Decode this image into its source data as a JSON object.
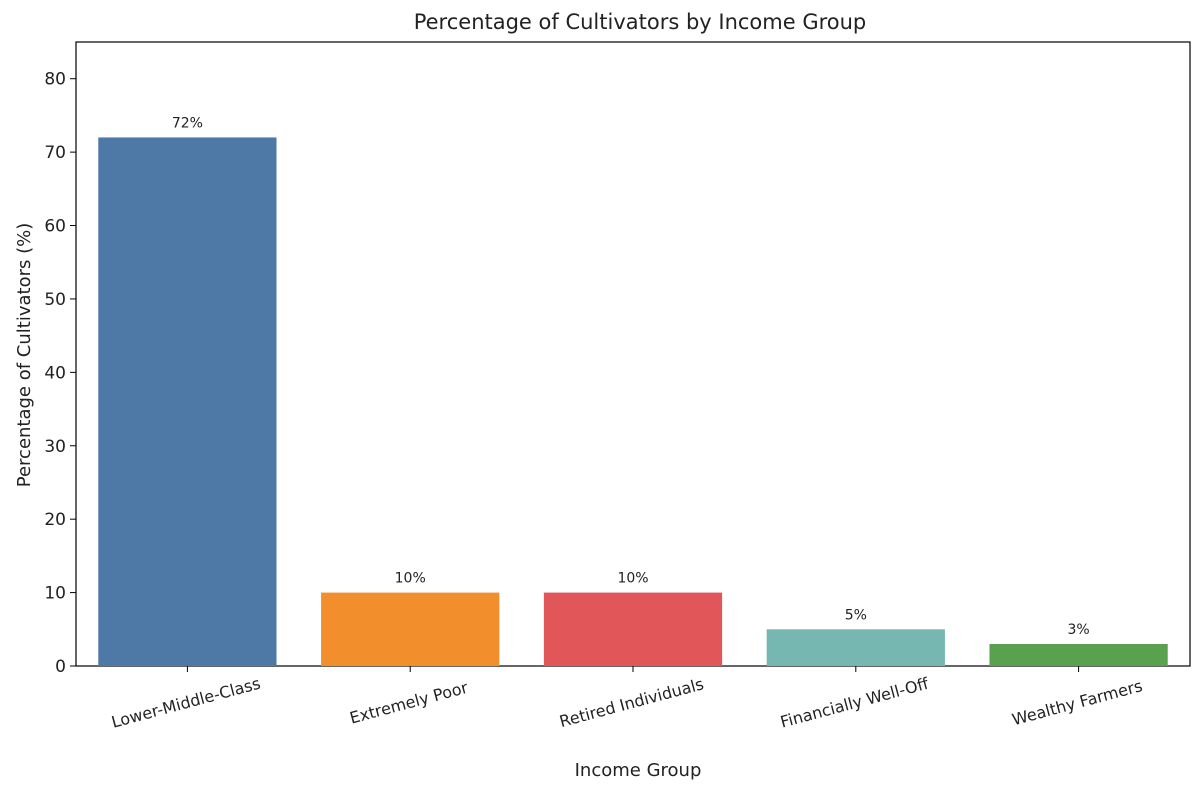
{
  "chart_data": {
    "type": "bar",
    "title": "Percentage of Cultivators by Income Group",
    "xlabel": "Income Group",
    "ylabel": "Percentage of Cultivators (%)",
    "categories": [
      "Lower-Middle-Class",
      "Extremely Poor",
      "Retired Individuals",
      "Financially Well-Off",
      "Wealthy Farmers"
    ],
    "values": [
      72,
      10,
      10,
      5,
      3
    ],
    "data_labels": [
      "72%",
      "10%",
      "10%",
      "5%",
      "3%"
    ],
    "colors": [
      "#4e79a7",
      "#f28e2b",
      "#e15759",
      "#76b7b2",
      "#59a14f"
    ],
    "ylim": [
      0,
      85
    ],
    "yticks": [
      0,
      10,
      20,
      30,
      40,
      50,
      60,
      70,
      80
    ],
    "grid": false,
    "legend": "none"
  }
}
